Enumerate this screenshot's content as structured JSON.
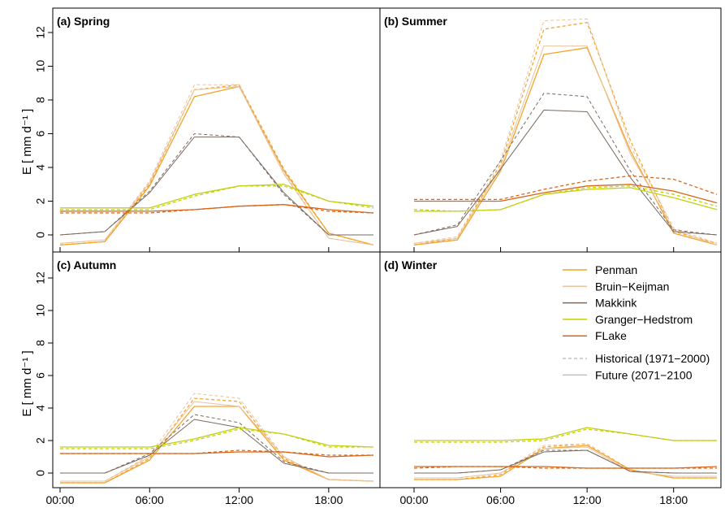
{
  "chart_data": {
    "type": "line",
    "ylabel": "E [ mm d⁻¹ ]",
    "x_ticks": [
      "00:00",
      "06:00",
      "12:00",
      "18:00"
    ],
    "x_tick_hours": [
      0,
      6,
      12,
      18
    ],
    "x_hours": [
      0,
      3,
      6,
      9,
      12,
      15,
      18,
      21
    ],
    "xlim": [
      0,
      21
    ],
    "ylim": [
      -0.6,
      13
    ],
    "y_ticks": [
      0,
      2,
      4,
      6,
      8,
      10,
      12
    ],
    "legend": {
      "placement": "panel-d-top-right",
      "methods": [
        "Penman",
        "Bruin−Keijman",
        "Makkink",
        "Granger−Hedstrom",
        "FLake"
      ],
      "periods": [
        "Historical (1971−2000)",
        "Future (2071−2100"
      ]
    },
    "colors": {
      "Penman": "#f5a32a",
      "Bruin−Keijman": "#e7c29c",
      "Makkink": "#7a6a5e",
      "Granger−Hedstrom": "#c3cf0f",
      "FLake": "#d96516"
    },
    "panels": [
      {
        "title": "(a) Spring",
        "series": [
          {
            "method": "Penman",
            "period": "future",
            "values": [
              -0.6,
              -0.4,
              2.9,
              8.2,
              8.8,
              3.8,
              0.1,
              -0.6
            ]
          },
          {
            "method": "Penman",
            "period": "historical",
            "values": [
              -0.6,
              -0.4,
              3.0,
              8.6,
              8.9,
              3.9,
              0.1,
              -0.6
            ]
          },
          {
            "method": "Bruin−Keijman",
            "period": "future",
            "values": [
              -0.5,
              -0.3,
              3.1,
              8.6,
              8.8,
              3.6,
              -0.2,
              -0.6
            ]
          },
          {
            "method": "Bruin−Keijman",
            "period": "historical",
            "values": [
              -0.5,
              -0.3,
              3.2,
              8.9,
              8.9,
              3.7,
              -0.2,
              -0.6
            ]
          },
          {
            "method": "Makkink",
            "period": "future",
            "values": [
              0.0,
              0.2,
              2.5,
              5.8,
              5.8,
              2.5,
              0.0,
              0.0
            ]
          },
          {
            "method": "Makkink",
            "period": "historical",
            "values": [
              0.0,
              0.2,
              2.6,
              6.0,
              5.8,
              2.4,
              0.0,
              0.0
            ]
          },
          {
            "method": "Granger−Hedstrom",
            "period": "future",
            "values": [
              1.6,
              1.6,
              1.6,
              2.4,
              2.9,
              3.0,
              2.0,
              1.7
            ]
          },
          {
            "method": "Granger−Hedstrom",
            "period": "historical",
            "values": [
              1.5,
              1.5,
              1.5,
              2.3,
              2.9,
              2.9,
              2.0,
              1.6
            ]
          },
          {
            "method": "FLake",
            "period": "future",
            "values": [
              1.4,
              1.4,
              1.4,
              1.5,
              1.7,
              1.8,
              1.5,
              1.3
            ]
          },
          {
            "method": "FLake",
            "period": "historical",
            "values": [
              1.3,
              1.3,
              1.3,
              1.5,
              1.7,
              1.8,
              1.4,
              1.3
            ]
          }
        ]
      },
      {
        "title": "(b) Summer",
        "series": [
          {
            "method": "Penman",
            "period": "future",
            "values": [
              -0.6,
              -0.3,
              3.8,
              10.7,
              11.1,
              5.0,
              0.1,
              -0.6
            ]
          },
          {
            "method": "Penman",
            "period": "historical",
            "values": [
              -0.6,
              -0.2,
              4.2,
              12.2,
              12.6,
              5.6,
              0.2,
              -0.5
            ]
          },
          {
            "method": "Bruin−Keijman",
            "period": "future",
            "values": [
              -0.5,
              -0.2,
              4.0,
              11.2,
              11.2,
              4.8,
              0.3,
              -0.6
            ]
          },
          {
            "method": "Bruin−Keijman",
            "period": "historical",
            "values": [
              -0.5,
              -0.1,
              4.4,
              12.7,
              12.8,
              5.3,
              0.4,
              -0.5
            ]
          },
          {
            "method": "Makkink",
            "period": "future",
            "values": [
              0.0,
              0.5,
              3.9,
              7.4,
              7.3,
              3.4,
              0.2,
              0.0
            ]
          },
          {
            "method": "Makkink",
            "period": "historical",
            "values": [
              0.0,
              0.6,
              4.4,
              8.4,
              8.2,
              3.8,
              0.3,
              0.0
            ]
          },
          {
            "method": "Granger−Hedstrom",
            "period": "future",
            "values": [
              1.4,
              1.4,
              1.5,
              2.4,
              2.7,
              2.8,
              2.2,
              1.5
            ]
          },
          {
            "method": "Granger−Hedstrom",
            "period": "historical",
            "values": [
              1.5,
              1.4,
              1.5,
              2.4,
              2.8,
              2.9,
              2.4,
              1.7
            ]
          },
          {
            "method": "FLake",
            "period": "future",
            "values": [
              2.0,
              2.0,
              2.0,
              2.5,
              2.9,
              3.0,
              2.6,
              1.9
            ]
          },
          {
            "method": "FLake",
            "period": "historical",
            "values": [
              2.1,
              2.1,
              2.1,
              2.7,
              3.2,
              3.5,
              3.3,
              2.4
            ]
          }
        ]
      },
      {
        "title": "(c) Autumn",
        "series": [
          {
            "method": "Penman",
            "period": "future",
            "values": [
              -0.6,
              -0.6,
              0.8,
              4.1,
              4.1,
              0.8,
              -0.4,
              -0.5
            ]
          },
          {
            "method": "Penman",
            "period": "historical",
            "values": [
              -0.6,
              -0.6,
              0.9,
              4.6,
              4.4,
              0.9,
              -0.4,
              -0.5
            ]
          },
          {
            "method": "Bruin−Keijman",
            "period": "future",
            "values": [
              -0.5,
              -0.5,
              1.0,
              4.4,
              4.1,
              1.0,
              -0.4,
              -0.5
            ]
          },
          {
            "method": "Bruin−Keijman",
            "period": "historical",
            "values": [
              -0.5,
              -0.5,
              1.1,
              4.9,
              4.6,
              1.0,
              -0.4,
              -0.5
            ]
          },
          {
            "method": "Makkink",
            "period": "future",
            "values": [
              0.0,
              0.0,
              1.1,
              3.3,
              2.8,
              0.6,
              0.0,
              0.0
            ]
          },
          {
            "method": "Makkink",
            "period": "historical",
            "values": [
              0.0,
              0.0,
              1.2,
              3.6,
              3.1,
              0.7,
              0.0,
              0.0
            ]
          },
          {
            "method": "Granger−Hedstrom",
            "period": "future",
            "values": [
              1.6,
              1.6,
              1.6,
              2.1,
              2.8,
              2.4,
              1.7,
              1.6
            ]
          },
          {
            "method": "Granger−Hedstrom",
            "period": "historical",
            "values": [
              1.5,
              1.5,
              1.5,
              2.0,
              2.7,
              2.4,
              1.6,
              1.6
            ]
          },
          {
            "method": "FLake",
            "period": "future",
            "values": [
              1.2,
              1.2,
              1.2,
              1.2,
              1.3,
              1.3,
              1.0,
              1.1
            ]
          },
          {
            "method": "FLake",
            "period": "historical",
            "values": [
              1.2,
              1.2,
              1.2,
              1.2,
              1.4,
              1.3,
              1.1,
              1.1
            ]
          }
        ]
      },
      {
        "title": "(d) Winter",
        "series": [
          {
            "method": "Penman",
            "period": "future",
            "values": [
              -0.4,
              -0.4,
              -0.2,
              1.5,
              1.7,
              0.2,
              -0.3,
              -0.3
            ]
          },
          {
            "method": "Penman",
            "period": "historical",
            "values": [
              -0.4,
              -0.4,
              -0.1,
              1.6,
              1.8,
              0.2,
              -0.3,
              -0.3
            ]
          },
          {
            "method": "Bruin−Keijman",
            "period": "future",
            "values": [
              -0.3,
              -0.3,
              0.0,
              1.5,
              1.6,
              0.1,
              -0.2,
              -0.2
            ]
          },
          {
            "method": "Bruin−Keijman",
            "period": "historical",
            "values": [
              -0.3,
              -0.3,
              0.0,
              1.7,
              1.8,
              0.1,
              -0.2,
              -0.2
            ]
          },
          {
            "method": "Makkink",
            "period": "future",
            "values": [
              0.0,
              0.0,
              0.2,
              1.3,
              1.4,
              0.1,
              0.0,
              0.0
            ]
          },
          {
            "method": "Makkink",
            "period": "historical",
            "values": [
              0.0,
              0.0,
              0.2,
              1.4,
              1.4,
              0.1,
              0.0,
              0.0
            ]
          },
          {
            "method": "Granger−Hedstrom",
            "period": "future",
            "values": [
              2.0,
              2.0,
              2.0,
              2.1,
              2.8,
              2.4,
              2.0,
              2.0
            ]
          },
          {
            "method": "Granger−Hedstrom",
            "period": "historical",
            "values": [
              1.9,
              1.9,
              1.9,
              2.0,
              2.7,
              2.4,
              2.0,
              2.0
            ]
          },
          {
            "method": "FLake",
            "period": "future",
            "values": [
              0.4,
              0.4,
              0.4,
              0.4,
              0.3,
              0.3,
              0.3,
              0.4
            ]
          },
          {
            "method": "FLake",
            "period": "historical",
            "values": [
              0.3,
              0.4,
              0.4,
              0.3,
              0.3,
              0.3,
              0.3,
              0.3
            ]
          }
        ]
      }
    ]
  }
}
